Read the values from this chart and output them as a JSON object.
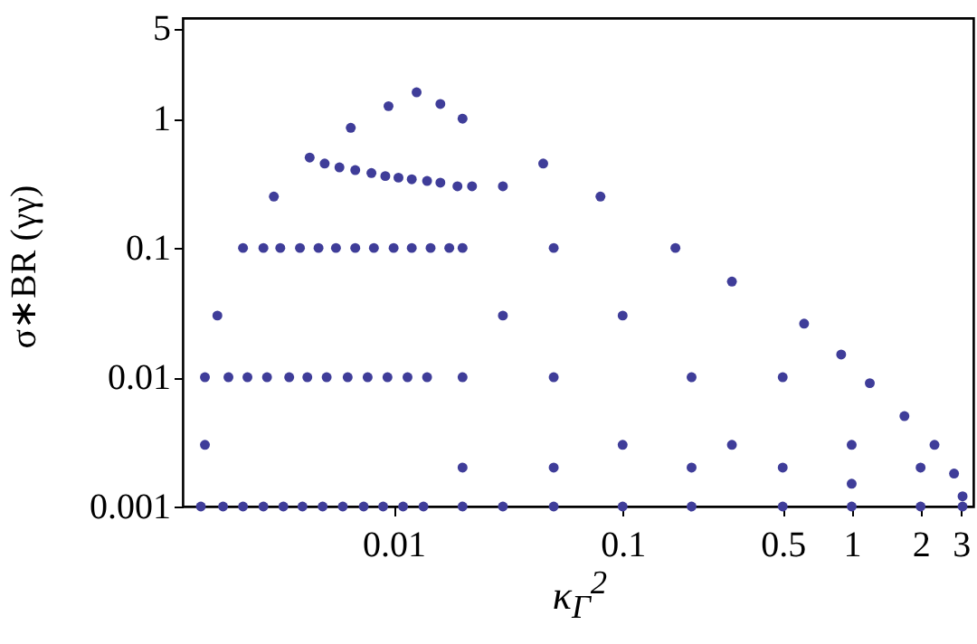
{
  "chart_data": {
    "type": "scatter",
    "xlabel": "κ$_{Γ}$$^{2}$",
    "ylabel": "σ∗BR (γγ)",
    "log": "xy",
    "grid": false,
    "marker": "circle",
    "xlim": [
      0.0012,
      3.4
    ],
    "xticks": [
      0.01,
      0.1,
      0.5,
      1,
      2,
      3
    ],
    "ylim": [
      0.001,
      6
    ],
    "yticks": [
      0.001,
      0.01,
      0.1,
      1,
      5
    ],
    "series": [
      {
        "color": "#3f3d99",
        "x": [
          0.00144,
          0.0015,
          0.0015,
          0.0017,
          0.0022,
          0.003,
          0.0043,
          0.0065,
          0.0095,
          0.0126,
          0.016,
          0.02,
          0.045,
          0.08,
          0.17,
          0.3,
          0.62,
          0.9,
          1.2,
          1.7,
          2.3,
          2.8,
          3.05,
          3.05,
          0.0018,
          0.0019,
          0.0027,
          0.005,
          0.0022,
          0.0023,
          0.0032,
          0.0058,
          0.0027,
          0.0028,
          0.0039,
          0.0068,
          0.0033,
          0.0035,
          0.0047,
          0.008,
          0.004,
          0.0042,
          0.0056,
          0.0092,
          0.0049,
          0.0051,
          0.0068,
          0.0105,
          0.006,
          0.0063,
          0.0082,
          0.012,
          0.0074,
          0.0077,
          0.01,
          0.014,
          0.009,
          0.0094,
          0.012,
          0.016,
          0.011,
          0.0115,
          0.0145,
          0.019,
          0.0135,
          0.014,
          0.0175,
          0.022,
          0.03,
          0.05,
          0.1,
          0.05,
          0.1,
          0.2,
          0.3,
          0.5,
          1,
          0.03,
          0.02,
          0.02,
          0.02,
          0.05,
          0.2,
          0.5,
          1,
          2,
          0.02,
          0.03,
          0.05,
          0.1,
          0.2,
          0.5,
          1,
          2
        ],
        "values": [
          0.001,
          0.003,
          0.01,
          0.03,
          0.1,
          0.25,
          0.5,
          0.85,
          1.25,
          1.6,
          1.3,
          1,
          0.45,
          0.25,
          0.1,
          0.055,
          0.026,
          0.015,
          0.009,
          0.005,
          0.003,
          0.0018,
          0.0012,
          0.001,
          0.001,
          0.01,
          0.1,
          0.45,
          0.001,
          0.01,
          0.1,
          0.42,
          0.001,
          0.01,
          0.1,
          0.4,
          0.001,
          0.01,
          0.1,
          0.38,
          0.001,
          0.01,
          0.1,
          0.36,
          0.001,
          0.01,
          0.1,
          0.35,
          0.001,
          0.01,
          0.1,
          0.34,
          0.001,
          0.01,
          0.1,
          0.33,
          0.001,
          0.01,
          0.1,
          0.32,
          0.001,
          0.01,
          0.1,
          0.3,
          0.001,
          0.01,
          0.1,
          0.3,
          0.03,
          0.01,
          0.003,
          0.1,
          0.03,
          0.01,
          0.003,
          0.01,
          0.003,
          0.3,
          0.1,
          0.01,
          0.002,
          0.002,
          0.002,
          0.002,
          0.0015,
          0.002,
          0.001,
          0.001,
          0.001,
          0.001,
          0.001,
          0.001,
          0.001,
          0.001
        ]
      }
    ]
  }
}
